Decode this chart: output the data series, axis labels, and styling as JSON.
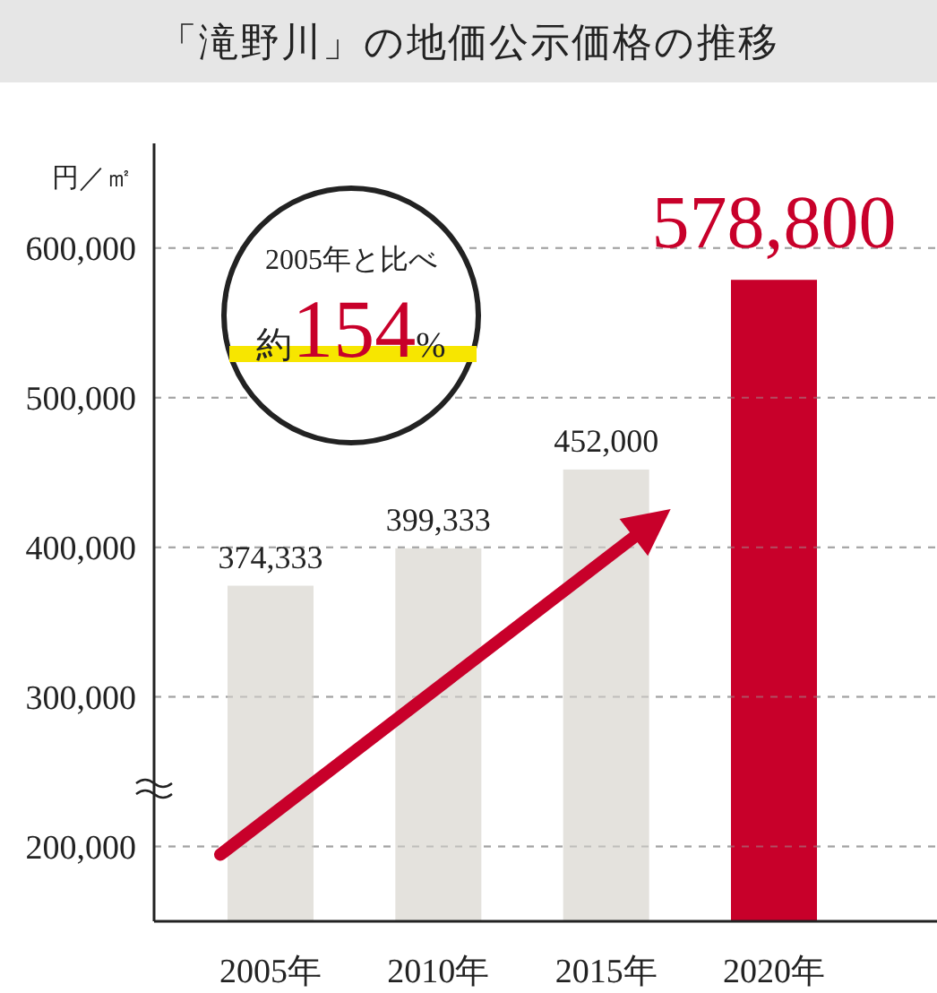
{
  "chart_data": {
    "type": "bar",
    "title": "「滝野川」の地価公示価格の推移",
    "ylabel": "円／㎡",
    "categories": [
      "2005年",
      "2010年",
      "2015年",
      "2020年"
    ],
    "values": [
      374333,
      399333,
      452000,
      578800
    ],
    "colors": [
      "#e4e2dd",
      "#e4e2dd",
      "#e4e2dd",
      "#c8002a"
    ],
    "value_labels": [
      "374,333",
      "399,333",
      "452,000",
      "578,800"
    ],
    "ylim": [
      150000,
      670000
    ],
    "yticks": [
      {
        "value": 200000,
        "label": "200,000"
      },
      {
        "value": 300000,
        "label": "300,000"
      },
      {
        "value": 400000,
        "label": "400,000"
      },
      {
        "value": 500000,
        "label": "500,000"
      },
      {
        "value": 600000,
        "label": "600,000"
      }
    ],
    "grid": "y",
    "annotations": [
      "2005年と比べ",
      "約154%"
    ]
  }
}
